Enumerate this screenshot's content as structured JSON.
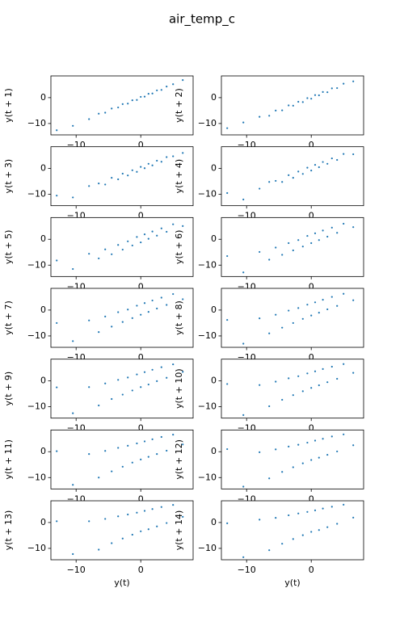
{
  "title": "air_temp_c",
  "chart_data": [
    {
      "type": "scatter",
      "xlabel": "y(t)",
      "ylabel": "y(t + 1)",
      "color": "#1f77b4",
      "xlim": [
        -13.9,
        8.1
      ],
      "ylim": [
        -14.4,
        8.4
      ],
      "xticks": [
        {
          "value": -10,
          "label": "−10"
        },
        0
      ],
      "yticks": [
        {
          "value": -10,
          "label": "−10"
        },
        0
      ],
      "x": [
        -13,
        -10.5,
        -8,
        -6.5,
        -5.5,
        -4.5,
        -3.5,
        -2.8,
        -2,
        -1.3,
        -0.6,
        0,
        0.6,
        1.2,
        1.8,
        2.5,
        3.2,
        4,
        5,
        6.5
      ],
      "values": [
        -12.6,
        -10.9,
        -8.3,
        -6.2,
        -5.8,
        -4.2,
        -3.8,
        -2.5,
        -2.3,
        -1.0,
        -0.9,
        0.3,
        0.4,
        1.5,
        1.6,
        2.8,
        3.0,
        4.3,
        5.2,
        6.8
      ]
    },
    {
      "type": "scatter",
      "xlabel": "y(t)",
      "ylabel": "y(t + 2)",
      "color": "#1f77b4",
      "xlim": [
        -13.9,
        8.1
      ],
      "ylim": [
        -14.4,
        8.4
      ],
      "xticks": [
        {
          "value": -10,
          "label": "−10"
        },
        0
      ],
      "yticks": [
        {
          "value": -10,
          "label": "−10"
        },
        0
      ],
      "x": [
        -13,
        -10.5,
        -8,
        -6.5,
        -5.5,
        -4.5,
        -3.5,
        -2.8,
        -2,
        -1.3,
        -0.6,
        0,
        0.6,
        1.2,
        1.8,
        2.5,
        3.2,
        4,
        5,
        6.5
      ],
      "values": [
        -11.8,
        -9.6,
        -7.4,
        -7.0,
        -5.0,
        -4.9,
        -3.0,
        -3.1,
        -1.6,
        -1.7,
        -0.2,
        -0.4,
        1.0,
        0.9,
        2.2,
        2.1,
        3.6,
        3.7,
        5.4,
        6.3
      ]
    },
    {
      "type": "scatter",
      "xlabel": "y(t)",
      "ylabel": "y(t + 3)",
      "color": "#1f77b4",
      "xlim": [
        -13.9,
        8.1
      ],
      "ylim": [
        -14.4,
        8.4
      ],
      "xticks": [
        {
          "value": -10,
          "label": "−10"
        },
        0
      ],
      "yticks": [
        {
          "value": -10,
          "label": "−10"
        },
        0
      ],
      "x": [
        -13,
        -10.5,
        -8,
        -6.5,
        -5.5,
        -4.5,
        -3.5,
        -2.8,
        -2,
        -1.3,
        -0.6,
        0,
        0.6,
        1.2,
        1.8,
        2.5,
        3.2,
        4,
        5,
        6.5
      ],
      "values": [
        -10.5,
        -11.2,
        -6.8,
        -5.8,
        -6.2,
        -3.6,
        -4.2,
        -2.0,
        -2.7,
        -0.7,
        -1.3,
        0.6,
        0.1,
        1.8,
        1.2,
        3.0,
        2.6,
        4.4,
        4.7,
        6.0
      ]
    },
    {
      "type": "scatter",
      "xlabel": "y(t)",
      "ylabel": "y(t + 4)",
      "color": "#1f77b4",
      "xlim": [
        -13.9,
        8.1
      ],
      "ylim": [
        -14.4,
        8.4
      ],
      "xticks": [
        {
          "value": -10,
          "label": "−10"
        },
        0
      ],
      "yticks": [
        {
          "value": -10,
          "label": "−10"
        },
        0
      ],
      "x": [
        -13,
        -10.5,
        -8,
        -6.5,
        -5.5,
        -4.5,
        -3.5,
        -2.8,
        -2,
        -1.3,
        -0.6,
        0,
        0.6,
        1.2,
        1.8,
        2.5,
        3.2,
        4,
        5,
        6.5
      ],
      "values": [
        -9.5,
        -12.0,
        -7.8,
        -5.2,
        -4.8,
        -5.2,
        -2.6,
        -3.6,
        -1.2,
        -2.1,
        0.3,
        -0.8,
        1.4,
        0.5,
        2.5,
        1.8,
        3.9,
        3.3,
        5.6,
        5.5
      ]
    },
    {
      "type": "scatter",
      "xlabel": "y(t)",
      "ylabel": "y(t + 5)",
      "color": "#1f77b4",
      "xlim": [
        -13.9,
        8.1
      ],
      "ylim": [
        -14.4,
        8.4
      ],
      "xticks": [
        {
          "value": -10,
          "label": "−10"
        },
        0
      ],
      "yticks": [
        {
          "value": -10,
          "label": "−10"
        },
        0
      ],
      "x": [
        -13,
        -10.5,
        -8,
        -6.5,
        -5.5,
        -4.5,
        -3.5,
        -2.8,
        -2,
        -1.3,
        -0.6,
        0,
        0.6,
        1.2,
        1.8,
        2.5,
        3.2,
        4,
        5,
        6.5
      ],
      "values": [
        -8.2,
        -11.5,
        -5.6,
        -7.4,
        -3.9,
        -5.8,
        -2.2,
        -4.0,
        -0.8,
        -2.4,
        0.9,
        -1.2,
        1.9,
        0.2,
        3.0,
        1.4,
        4.2,
        2.9,
        5.8,
        5.1
      ]
    },
    {
      "type": "scatter",
      "xlabel": "y(t)",
      "ylabel": "y(t + 6)",
      "color": "#1f77b4",
      "xlim": [
        -13.9,
        8.1
      ],
      "ylim": [
        -14.4,
        8.4
      ],
      "xticks": [
        {
          "value": -10,
          "label": "−10"
        },
        0
      ],
      "yticks": [
        {
          "value": -10,
          "label": "−10"
        },
        0
      ],
      "x": [
        -13,
        -10.5,
        -8,
        -6.5,
        -5.5,
        -4.5,
        -3.5,
        -2.8,
        -2,
        -1.3,
        -0.6,
        0,
        0.6,
        1.2,
        1.8,
        2.5,
        3.2,
        4,
        5,
        6.5
      ],
      "values": [
        -6.5,
        -12.8,
        -4.9,
        -7.9,
        -3.2,
        -6.0,
        -1.5,
        -4.3,
        -0.3,
        -2.8,
        1.3,
        -1.5,
        2.3,
        -0.3,
        3.4,
        1.0,
        4.5,
        2.5,
        6.0,
        4.7
      ]
    },
    {
      "type": "scatter",
      "xlabel": "y(t)",
      "ylabel": "y(t + 7)",
      "color": "#1f77b4",
      "xlim": [
        -13.9,
        8.1
      ],
      "ylim": [
        -14.4,
        8.4
      ],
      "xticks": [
        {
          "value": -10,
          "label": "−10"
        },
        0
      ],
      "yticks": [
        {
          "value": -10,
          "label": "−10"
        },
        0
      ],
      "x": [
        -13,
        -10.5,
        -8,
        -6.5,
        -5.5,
        -4.5,
        -3.5,
        -2.8,
        -2,
        -1.3,
        -0.6,
        0,
        0.6,
        1.2,
        1.8,
        2.5,
        3.2,
        4,
        5,
        6.5
      ],
      "values": [
        -5.0,
        -12.0,
        -4.0,
        -8.5,
        -2.5,
        -6.4,
        -0.8,
        -4.6,
        0.2,
        -3.1,
        1.7,
        -1.8,
        2.7,
        -0.7,
        3.7,
        0.6,
        4.8,
        2.0,
        6.2,
        4.2
      ]
    },
    {
      "type": "scatter",
      "xlabel": "y(t)",
      "ylabel": "y(t + 8)",
      "color": "#1f77b4",
      "xlim": [
        -13.9,
        8.1
      ],
      "ylim": [
        -14.4,
        8.4
      ],
      "xticks": [
        {
          "value": -10,
          "label": "−10"
        },
        0
      ],
      "yticks": [
        {
          "value": -10,
          "label": "−10"
        },
        0
      ],
      "x": [
        -13,
        -10.5,
        -8,
        -6.5,
        -5.5,
        -4.5,
        -3.5,
        -2.8,
        -2,
        -1.3,
        -0.6,
        0,
        0.6,
        1.2,
        1.8,
        2.5,
        3.2,
        4,
        5,
        6.5
      ],
      "values": [
        -3.8,
        -13.0,
        -3.2,
        -9.0,
        -1.8,
        -6.8,
        -0.2,
        -5.0,
        0.8,
        -3.4,
        2.1,
        -2.1,
        3.0,
        -1.0,
        4.0,
        0.3,
        5.1,
        1.6,
        6.3,
        3.8
      ]
    },
    {
      "type": "scatter",
      "xlabel": "y(t)",
      "ylabel": "y(t + 9)",
      "color": "#1f77b4",
      "xlim": [
        -13.9,
        8.1
      ],
      "ylim": [
        -14.4,
        8.4
      ],
      "xticks": [
        {
          "value": -10,
          "label": "−10"
        },
        0
      ],
      "yticks": [
        {
          "value": -10,
          "label": "−10"
        },
        0
      ],
      "x": [
        -13,
        -10.5,
        -8,
        -6.5,
        -5.5,
        -4.5,
        -3.5,
        -2.8,
        -2,
        -1.3,
        -0.6,
        0,
        0.6,
        1.2,
        1.8,
        2.5,
        3.2,
        4,
        5,
        6.5
      ],
      "values": [
        -2.5,
        -12.5,
        -2.4,
        -9.5,
        -1.0,
        -7.0,
        0.4,
        -5.3,
        1.3,
        -3.7,
        2.5,
        -2.4,
        3.4,
        -1.4,
        4.3,
        -0.1,
        5.3,
        1.2,
        6.4,
        3.5
      ]
    },
    {
      "type": "scatter",
      "xlabel": "y(t)",
      "ylabel": "y(t + 10)",
      "color": "#1f77b4",
      "xlim": [
        -13.9,
        8.1
      ],
      "ylim": [
        -14.4,
        8.4
      ],
      "xticks": [
        {
          "value": -10,
          "label": "−10"
        },
        0
      ],
      "yticks": [
        {
          "value": -10,
          "label": "−10"
        },
        0
      ],
      "x": [
        -13,
        -10.5,
        -8,
        -6.5,
        -5.5,
        -4.5,
        -3.5,
        -2.8,
        -2,
        -1.3,
        -0.6,
        0,
        0.6,
        1.2,
        1.8,
        2.5,
        3.2,
        4,
        5,
        6.5
      ],
      "values": [
        -1.2,
        -13.2,
        -1.6,
        -9.8,
        -0.3,
        -7.3,
        1.0,
        -5.5,
        1.8,
        -4.0,
        2.9,
        -2.7,
        3.7,
        -1.7,
        4.6,
        -0.5,
        5.5,
        0.8,
        6.5,
        3.1
      ]
    },
    {
      "type": "scatter",
      "xlabel": "y(t)",
      "ylabel": "y(t + 11)",
      "color": "#1f77b4",
      "xlim": [
        -13.9,
        8.1
      ],
      "ylim": [
        -14.4,
        8.4
      ],
      "xticks": [
        {
          "value": -10,
          "label": "−10"
        },
        0
      ],
      "yticks": [
        {
          "value": -10,
          "label": "−10"
        },
        0
      ],
      "x": [
        -13,
        -10.5,
        -8,
        -6.5,
        -5.5,
        -4.5,
        -3.5,
        -2.8,
        -2,
        -1.3,
        -0.6,
        0,
        0.6,
        1.2,
        1.8,
        2.5,
        3.2,
        4,
        5,
        6.5
      ],
      "values": [
        0.2,
        -12.8,
        -0.9,
        -10.0,
        0.3,
        -7.6,
        1.5,
        -5.8,
        2.3,
        -4.2,
        3.2,
        -3.0,
        4.0,
        -2.0,
        4.8,
        -0.9,
        5.7,
        0.4,
        6.6,
        2.8
      ]
    },
    {
      "type": "scatter",
      "xlabel": "y(t)",
      "ylabel": "y(t + 12)",
      "color": "#1f77b4",
      "xlim": [
        -13.9,
        8.1
      ],
      "ylim": [
        -14.4,
        8.4
      ],
      "xticks": [
        {
          "value": -10,
          "label": "−10"
        },
        0
      ],
      "yticks": [
        {
          "value": -10,
          "label": "−10"
        },
        0
      ],
      "x": [
        -13,
        -10.5,
        -8,
        -6.5,
        -5.5,
        -4.5,
        -3.5,
        -2.8,
        -2,
        -1.3,
        -0.6,
        0,
        0.6,
        1.2,
        1.8,
        2.5,
        3.2,
        4,
        5,
        6.5
      ],
      "values": [
        1.0,
        -13.5,
        -0.2,
        -10.3,
        0.9,
        -7.8,
        2.0,
        -6.0,
        2.7,
        -4.5,
        3.5,
        -3.2,
        4.3,
        -2.3,
        5.0,
        -1.2,
        5.9,
        0.1,
        6.7,
        2.5
      ]
    },
    {
      "type": "scatter",
      "xlabel": "y(t)",
      "ylabel": "y(t + 13)",
      "color": "#1f77b4",
      "xlim": [
        -13.9,
        8.1
      ],
      "ylim": [
        -14.4,
        8.4
      ],
      "xticks": [
        {
          "value": -10,
          "label": "−10"
        },
        0
      ],
      "yticks": [
        {
          "value": -10,
          "label": "−10"
        },
        0
      ],
      "x": [
        -13,
        -10.5,
        -8,
        -6.5,
        -5.5,
        -4.5,
        -3.5,
        -2.8,
        -2,
        -1.3,
        -0.6,
        0,
        0.6,
        1.2,
        1.8,
        2.5,
        3.2,
        4,
        5,
        6.5
      ],
      "values": [
        0.5,
        -12.2,
        0.5,
        -10.5,
        1.4,
        -8.0,
        2.4,
        -6.2,
        3.1,
        -4.7,
        3.8,
        -3.4,
        4.5,
        -2.6,
        5.2,
        -1.5,
        6.0,
        -0.2,
        6.8,
        2.2
      ]
    },
    {
      "type": "scatter",
      "xlabel": "y(t)",
      "ylabel": "y(t + 14)",
      "color": "#1f77b4",
      "xlim": [
        -13.9,
        8.1
      ],
      "ylim": [
        -14.4,
        8.4
      ],
      "xticks": [
        {
          "value": -10,
          "label": "−10"
        },
        0
      ],
      "yticks": [
        {
          "value": -10,
          "label": "−10"
        },
        0
      ],
      "x": [
        -13,
        -10.5,
        -8,
        -6.5,
        -5.5,
        -4.5,
        -3.5,
        -2.8,
        -2,
        -1.3,
        -0.6,
        0,
        0.6,
        1.2,
        1.8,
        2.5,
        3.2,
        4,
        5,
        6.5
      ],
      "values": [
        -0.3,
        -13.4,
        1.1,
        -10.7,
        1.8,
        -8.2,
        2.8,
        -6.4,
        3.5,
        -4.9,
        4.1,
        -3.6,
        4.7,
        -2.9,
        5.4,
        -1.8,
        6.1,
        -0.5,
        6.9,
        1.9
      ]
    }
  ]
}
